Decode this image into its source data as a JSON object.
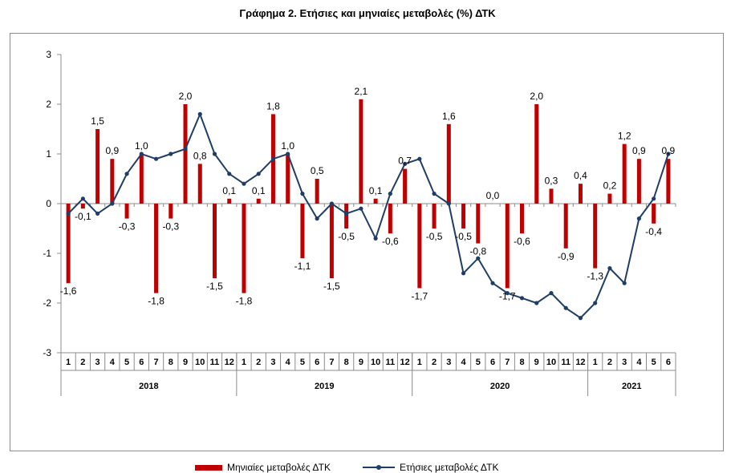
{
  "title": "Γράφημα 2. Ετήσιες και μηνιαίες μεταβολές (%) ΔΤΚ",
  "chart_data": {
    "type": "bar",
    "months": [
      "1",
      "2",
      "3",
      "4",
      "5",
      "6",
      "7",
      "8",
      "9",
      "10",
      "11",
      "12",
      "1",
      "2",
      "3",
      "4",
      "5",
      "6",
      "7",
      "8",
      "9",
      "10",
      "11",
      "12",
      "1",
      "2",
      "3",
      "4",
      "5",
      "6",
      "7",
      "8",
      "9",
      "10",
      "11",
      "12",
      "1",
      "2",
      "3",
      "4",
      "5",
      "6"
    ],
    "years": [
      {
        "label": "2018",
        "months": 12
      },
      {
        "label": "2019",
        "months": 12
      },
      {
        "label": "2020",
        "months": 12
      },
      {
        "label": "2021",
        "months": 6
      }
    ],
    "ylim": [
      -3,
      3
    ],
    "yticks": [
      -3,
      -2,
      -1,
      0,
      1,
      2,
      3
    ],
    "series": [
      {
        "name": "Μηνιαίες μεταβολές ΔΤΚ",
        "type": "bar",
        "color": "#c00000",
        "values": [
          -1.6,
          -0.1,
          1.5,
          0.9,
          -0.3,
          1.0,
          -1.8,
          -0.3,
          2.0,
          0.8,
          -1.5,
          0.1,
          -1.8,
          0.1,
          1.8,
          1.0,
          -1.1,
          0.5,
          -1.5,
          -0.5,
          2.1,
          0.1,
          -0.6,
          0.7,
          -1.7,
          -0.5,
          1.6,
          -0.5,
          -0.8,
          0.0,
          -1.7,
          -0.6,
          2.0,
          0.3,
          -0.9,
          0.4,
          -1.3,
          0.2,
          1.2,
          0.9,
          -0.4,
          0.9
        ],
        "labels": [
          "-1,6",
          "-0,1",
          "1,5",
          "0,9",
          "-0,3",
          "1,0",
          "-1,8",
          "-0,3",
          "2,0",
          "0,8",
          "-1,5",
          "0,1",
          "-1,8",
          "0,1",
          "1,8",
          "1,0",
          "-1,1",
          "0,5",
          "-1,5",
          "-0,5",
          "2,1",
          "0,1",
          "-0,6",
          "0,7",
          "-1,7",
          "-0,5",
          "1,6",
          "-0,5",
          "-0,8",
          "0,0",
          "-1,7",
          "-0,6",
          "2,0",
          "0,3",
          "-0,9",
          "0,4",
          "-1,3",
          "0,2",
          "1,2",
          "0,9",
          "-0,4",
          "0,9"
        ]
      },
      {
        "name": "Ετήσιες μεταβολές ΔΤΚ",
        "type": "line",
        "color": "#1f3d66",
        "values": [
          -0.2,
          0.1,
          -0.2,
          0.0,
          0.6,
          1.0,
          0.9,
          1.0,
          1.1,
          1.8,
          1.0,
          0.6,
          0.4,
          0.6,
          0.9,
          1.0,
          0.2,
          -0.3,
          0.0,
          -0.2,
          -0.1,
          -0.7,
          0.2,
          0.8,
          0.9,
          0.2,
          0.0,
          -1.4,
          -1.1,
          -1.6,
          -1.8,
          -1.9,
          -2.0,
          -1.8,
          -2.1,
          -2.3,
          -2.0,
          -1.3,
          -1.6,
          -0.3,
          0.1,
          1.0
        ]
      }
    ],
    "grid": false,
    "legend_position": "bottom"
  }
}
